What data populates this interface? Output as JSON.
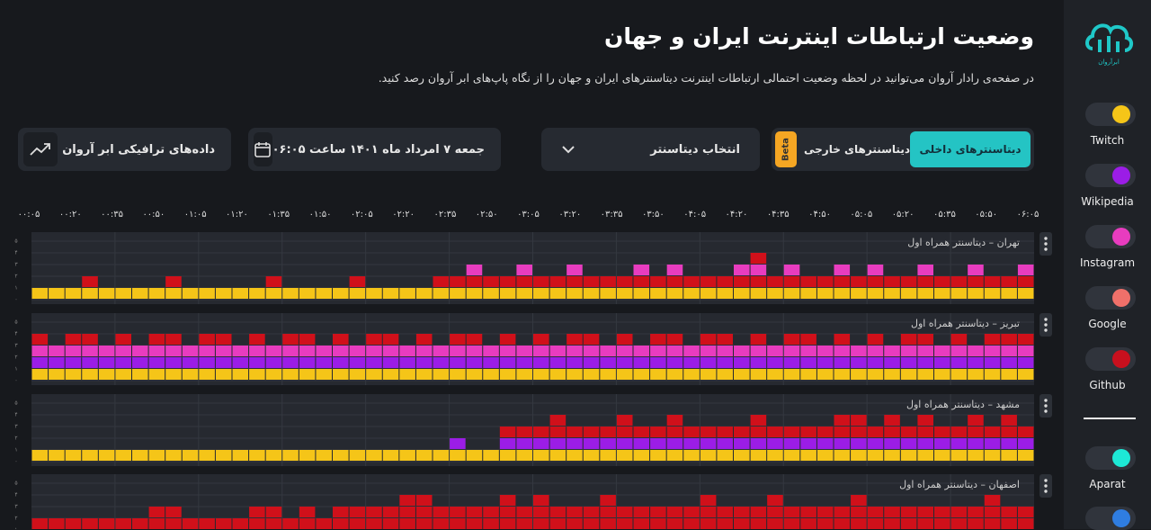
{
  "brand": "ابرآروان",
  "header": {
    "title": "وضعیت ارتباطات اینترنت ایران و جهان",
    "subtitle": "در صفحه‌ی رادار آروان می‌توانید در لحظه وضعیت احتمالی ارتباطات اینترنت دیتاسنترهای ایران و جهان را از نگاه پاپ‌های ابر آروان رصد کنید."
  },
  "controls": {
    "tabs": [
      "دیتاسنترهای داخلی",
      "دیتاسنترهای خارجی"
    ],
    "beta": "Beta",
    "datacenter_select": "انتخاب دیتاسنتر",
    "date": "جمعه ۷ امرداد ماه ۱۴۰۱ ساعت ۰۶:۰۵",
    "traffic": "داده‌های ترافیکی ابر آروان"
  },
  "services": [
    {
      "name": "Twitch",
      "color": "#f5c518"
    },
    {
      "name": "Wikipedia",
      "color": "#9b1de6"
    },
    {
      "name": "Instagram",
      "color": "#e83cbf"
    },
    {
      "name": "Google",
      "color": "#f0706a"
    },
    {
      "name": "Github",
      "color": "#c8101e"
    },
    {
      "name": "Aparat",
      "color": "#1de9d6"
    },
    {
      "name": null,
      "color": "#2f7de1"
    }
  ],
  "time_labels": [
    "۰۰:۰۵",
    "۰۰:۲۰",
    "۰۰:۳۵",
    "۰۰:۵۰",
    "۰۱:۰۵",
    "۰۱:۲۰",
    "۰۱:۳۵",
    "۰۱:۵۰",
    "۰۲:۰۵",
    "۰۲:۲۰",
    "۰۲:۳۵",
    "۰۲:۵۰",
    "۰۳:۰۵",
    "۰۳:۲۰",
    "۰۳:۳۵",
    "۰۳:۵۰",
    "۰۴:۰۵",
    "۰۴:۲۰",
    "۰۴:۳۵",
    "۰۴:۵۰",
    "۰۵:۰۵",
    "۰۵:۲۰",
    "۰۵:۳۵",
    "۰۵:۵۰",
    "۰۶:۰۵"
  ],
  "ylim": [
    0,
    5
  ],
  "yticks": [
    {
      "value": 0,
      "label": "۰"
    },
    {
      "value": 1,
      "label": "۱"
    },
    {
      "value": 2,
      "label": "۲"
    },
    {
      "value": 3,
      "label": "۳"
    },
    {
      "value": 4,
      "label": "۴"
    },
    {
      "value": 5,
      "label": "۵"
    }
  ],
  "panels": [
    {
      "title": "تهران – دیتاسنتر همراه اول",
      "layer_colors": [
        "#f5c518",
        "#d0101a",
        "#e83cbf",
        "#d0101a"
      ],
      "values": [
        1,
        1,
        1,
        2,
        1,
        1,
        1,
        1,
        2,
        1,
        1,
        1,
        1,
        1,
        2,
        1,
        1,
        1,
        1,
        2,
        1,
        1,
        1,
        1,
        2,
        2,
        3,
        2,
        2,
        3,
        2,
        2,
        3,
        2,
        2,
        2,
        3,
        2,
        3,
        2,
        2,
        2,
        3,
        4,
        2,
        3,
        2,
        2,
        3,
        2,
        3,
        2,
        2,
        3,
        2,
        2,
        3,
        2,
        2,
        3
      ]
    },
    {
      "title": "تبریز – دیتاسنتر همراه اول",
      "layer_colors": [
        "#f5c518",
        "#9b1de6",
        "#e83cbf",
        "#d0101a"
      ],
      "values": [
        4,
        3,
        4,
        4,
        3,
        4,
        3,
        4,
        4,
        3,
        4,
        4,
        3,
        4,
        3,
        4,
        4,
        3,
        4,
        3,
        4,
        4,
        3,
        4,
        3,
        4,
        4,
        3,
        4,
        3,
        4,
        3,
        4,
        4,
        3,
        4,
        3,
        4,
        4,
        3,
        4,
        4,
        3,
        4,
        3,
        4,
        4,
        3,
        4,
        3,
        4,
        3,
        4,
        4,
        3,
        4,
        3,
        4,
        4,
        4
      ]
    },
    {
      "title": "مشهد – دیتاسنتر همراه اول",
      "layer_colors": [
        "#f5c518",
        "#9b1de6",
        "#d0101a",
        "#d0101a"
      ],
      "values": [
        1,
        1,
        1,
        1,
        1,
        1,
        1,
        1,
        1,
        1,
        1,
        1,
        1,
        1,
        1,
        1,
        1,
        1,
        1,
        1,
        1,
        1,
        1,
        1,
        1,
        2,
        1,
        1,
        3,
        3,
        3,
        4,
        3,
        3,
        3,
        4,
        3,
        3,
        4,
        3,
        3,
        3,
        3,
        4,
        3,
        3,
        3,
        3,
        4,
        4,
        3,
        4,
        3,
        4,
        3,
        3,
        4,
        3,
        4,
        3
      ]
    },
    {
      "title": "اصفهان – دیتاسنتر همراه اول",
      "layer_colors": [
        "#d0101a",
        "#d0101a",
        "#d0101a",
        "#d0101a",
        "#e83cbf"
      ],
      "values": [
        2,
        2,
        2,
        2,
        2,
        2,
        2,
        3,
        3,
        2,
        2,
        2,
        2,
        3,
        3,
        2,
        3,
        2,
        3,
        3,
        3,
        3,
        4,
        4,
        3,
        3,
        3,
        3,
        4,
        3,
        4,
        3,
        3,
        3,
        4,
        3,
        3,
        3,
        3,
        3,
        4,
        3,
        3,
        3,
        4,
        3,
        3,
        3,
        3,
        4,
        3,
        3,
        3,
        3,
        3,
        3,
        3,
        4,
        3,
        3
      ]
    }
  ]
}
